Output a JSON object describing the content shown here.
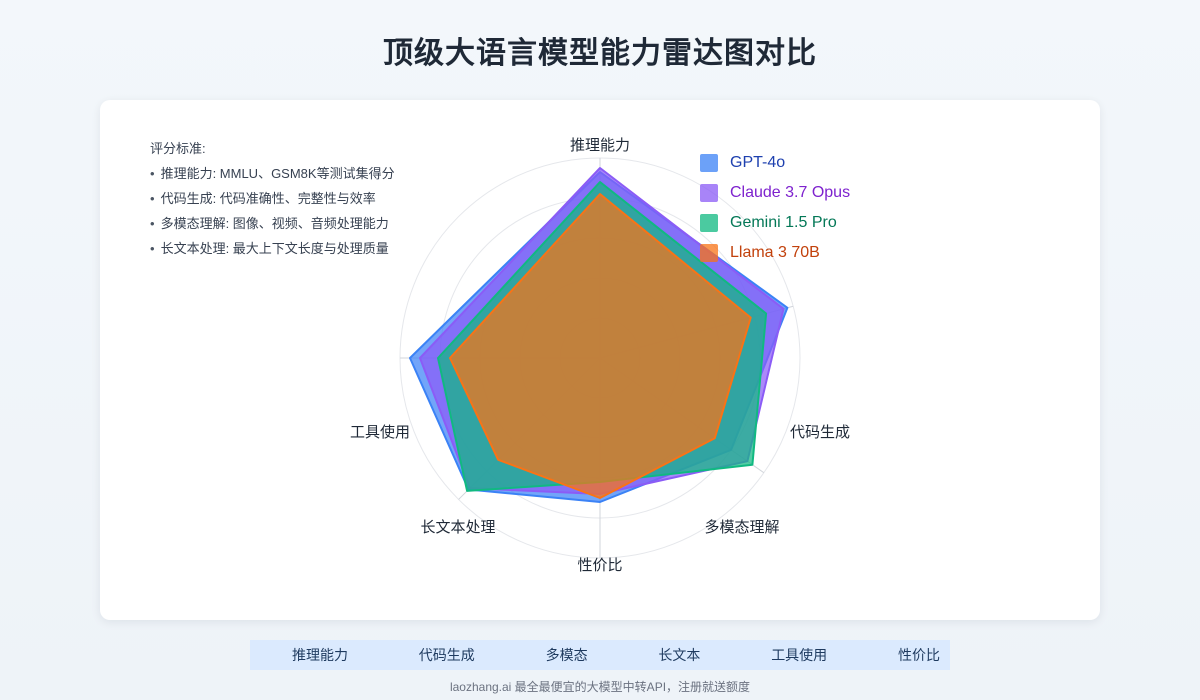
{
  "title": "顶级大语言模型能力雷达图对比",
  "criteria": {
    "heading": "评分标准:",
    "items": [
      "推理能力: MMLU、GSM8K等测试集得分",
      "代码生成: 代码准确性、完整性与效率",
      "多模态理解: 图像、视频、音频处理能力",
      "长文本处理: 最大上下文长度与处理质量"
    ]
  },
  "nav": [
    "推理能力",
    "代码生成",
    "多模态",
    "长文本",
    "工具使用",
    "性价比"
  ],
  "footer": "laozhang.ai 最全最便宜的大模型中转API，注册就送额度",
  "chart_data": {
    "type": "radar",
    "axes": [
      "推理能力",
      "代码生成",
      "多模态理解",
      "性价比",
      "长文本处理",
      "工具使用"
    ],
    "range": [
      0,
      100
    ],
    "grid": true,
    "legend_position": "top-right",
    "series": [
      {
        "name": "GPT-4o",
        "values": [
          93,
          97,
          80,
          72,
          93,
          95
        ],
        "color": "#3b82f6"
      },
      {
        "name": "Claude 3.7 Opus",
        "values": [
          95,
          95,
          90,
          68,
          92,
          90
        ],
        "color": "#8b5cf6"
      },
      {
        "name": "Gemini 1.5 Pro",
        "values": [
          88,
          86,
          93,
          62,
          94,
          81
        ],
        "color": "#10b981"
      },
      {
        "name": "Llama 3 70B",
        "values": [
          82,
          78,
          70,
          70,
          72,
          75
        ],
        "color": "#f97316"
      }
    ]
  }
}
